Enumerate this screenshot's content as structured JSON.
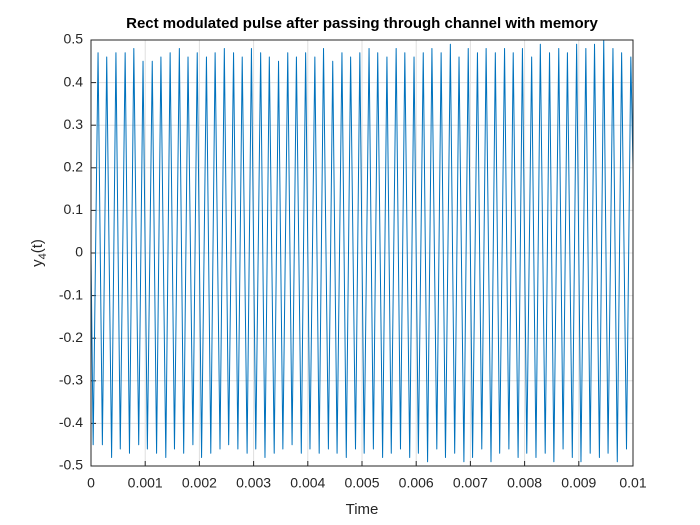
{
  "chart_data": {
    "type": "line",
    "title": "Rect modulated pulse after passing through channel with memory",
    "xlabel": "Time",
    "ylabel": [
      "y",
      "4",
      "(t)"
    ],
    "xlim": [
      0,
      0.01
    ],
    "ylim": [
      -0.5,
      0.5
    ],
    "xticks": [
      0,
      0.001,
      0.002,
      0.003,
      0.004,
      0.005,
      0.006,
      0.007,
      0.008,
      0.009,
      0.01
    ],
    "yticks": [
      -0.5,
      -0.4,
      -0.3,
      -0.2,
      -0.1,
      0,
      0.1,
      0.2,
      0.3,
      0.4,
      0.5
    ],
    "grid": true,
    "box": true,
    "series": [
      {
        "color": "#0072bd",
        "x": [
          0,
          4e-05,
          0.00013,
          0.00021,
          0.00029,
          0.00038,
          0.00046,
          0.00054,
          0.00063,
          0.00071,
          0.00079,
          0.00088,
          0.00096,
          0.00104,
          0.00113,
          0.00121,
          0.00129,
          0.00138,
          0.00146,
          0.00154,
          0.00163,
          0.00171,
          0.00179,
          0.00188,
          0.00196,
          0.00204,
          0.00213,
          0.00221,
          0.00229,
          0.00238,
          0.00246,
          0.00254,
          0.00263,
          0.00271,
          0.00279,
          0.00288,
          0.00296,
          0.00304,
          0.00313,
          0.00321,
          0.00329,
          0.00338,
          0.00346,
          0.00354,
          0.00363,
          0.00371,
          0.00379,
          0.00388,
          0.00396,
          0.00404,
          0.00413,
          0.00421,
          0.00429,
          0.00438,
          0.00446,
          0.00454,
          0.00463,
          0.00471,
          0.00479,
          0.00488,
          0.00496,
          0.00504,
          0.00513,
          0.00521,
          0.00529,
          0.00538,
          0.00546,
          0.00554,
          0.00563,
          0.00571,
          0.00579,
          0.00588,
          0.00596,
          0.00604,
          0.00613,
          0.00621,
          0.00629,
          0.00638,
          0.00646,
          0.00654,
          0.00663,
          0.00671,
          0.00679,
          0.00688,
          0.00696,
          0.00704,
          0.00713,
          0.00721,
          0.00729,
          0.00738,
          0.00746,
          0.00754,
          0.00763,
          0.00771,
          0.00779,
          0.00788,
          0.00796,
          0.00804,
          0.00813,
          0.00821,
          0.00829,
          0.00838,
          0.00846,
          0.00854,
          0.00863,
          0.00871,
          0.00879,
          0.00888,
          0.00896,
          0.00904,
          0.00913,
          0.00921,
          0.00929,
          0.00938,
          0.00946,
          0.00954,
          0.00963,
          0.00971,
          0.00979,
          0.00988,
          0.00996,
          0.01
        ],
        "values": [
          0,
          -0.45,
          0.47,
          -0.45,
          0.46,
          -0.48,
          0.47,
          -0.46,
          0.47,
          -0.47,
          0.48,
          -0.45,
          0.45,
          -0.46,
          0.45,
          -0.47,
          0.46,
          -0.48,
          0.47,
          -0.46,
          0.48,
          -0.47,
          0.46,
          -0.45,
          0.47,
          -0.48,
          0.46,
          -0.47,
          0.47,
          -0.46,
          0.48,
          -0.45,
          0.47,
          -0.46,
          0.46,
          -0.47,
          0.48,
          -0.46,
          0.47,
          -0.48,
          0.46,
          -0.47,
          0.45,
          -0.46,
          0.47,
          -0.45,
          0.46,
          -0.47,
          0.47,
          -0.46,
          0.46,
          -0.47,
          0.48,
          -0.46,
          0.45,
          -0.47,
          0.47,
          -0.48,
          0.46,
          -0.46,
          0.47,
          -0.47,
          0.48,
          -0.46,
          0.47,
          -0.48,
          0.46,
          -0.47,
          0.48,
          -0.46,
          0.47,
          -0.48,
          0.46,
          -0.47,
          0.47,
          -0.49,
          0.48,
          -0.46,
          0.47,
          -0.48,
          0.49,
          -0.47,
          0.46,
          -0.49,
          0.48,
          -0.48,
          0.47,
          -0.46,
          0.48,
          -0.49,
          0.47,
          -0.47,
          0.48,
          -0.46,
          0.47,
          -0.48,
          0.48,
          -0.47,
          0.46,
          -0.48,
          0.49,
          -0.47,
          0.47,
          -0.49,
          0.48,
          -0.46,
          0.47,
          -0.48,
          0.49,
          -0.49,
          0.48,
          -0.47,
          0.49,
          -0.48,
          0.5,
          -0.47,
          0.48,
          -0.49,
          0.47,
          -0.46,
          0.46,
          0.2
        ]
      }
    ]
  }
}
